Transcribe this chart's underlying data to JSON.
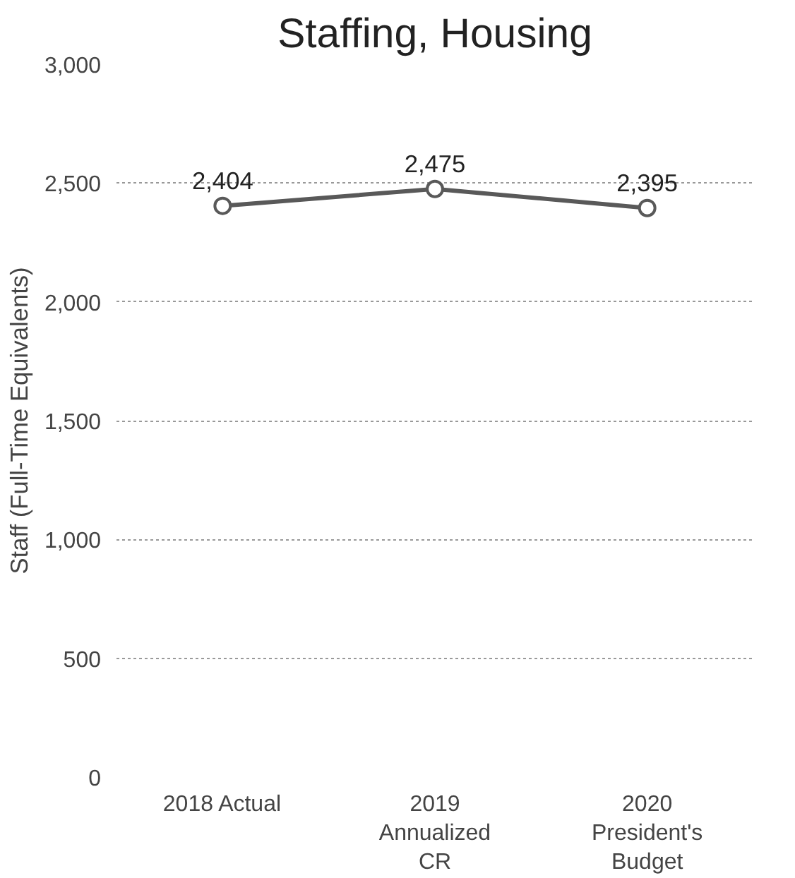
{
  "chart_data": {
    "type": "line",
    "title": "Staffing, Housing",
    "ylabel": "Staff (Full-Time Equivalents)",
    "categories": [
      "2018 Actual",
      "2019\nAnnualized\nCR",
      "2020\nPresident's\nBudget"
    ],
    "series": [
      {
        "color": "#595959",
        "values": [
          2404,
          2475,
          2395
        ],
        "value_labels": [
          "2,404",
          "2,475",
          "2,395"
        ]
      }
    ],
    "ylim": [
      0,
      3000
    ],
    "yticks": [
      {
        "value": 0,
        "label": "0"
      },
      {
        "value": 500,
        "label": "500"
      },
      {
        "value": 1000,
        "label": "1,000"
      },
      {
        "value": 1500,
        "label": "1,500"
      },
      {
        "value": 2000,
        "label": "2,000"
      },
      {
        "value": 2500,
        "label": "2,500"
      },
      {
        "value": 3000,
        "label": "3,000"
      }
    ],
    "grid": "y",
    "marker": "circle"
  }
}
